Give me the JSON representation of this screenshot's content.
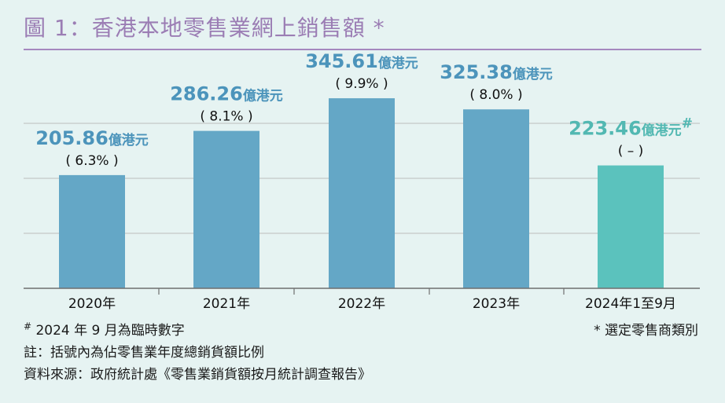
{
  "title": "圖 1：香港本地零售業網上銷售額 *",
  "colors": {
    "bar": "#64a7c6",
    "bar_highlight": "#5bc2bd",
    "value_label": "#4c94bb",
    "value_label_highlight": "#52b8b2",
    "grid": "#bcbcbc",
    "axis": "#6f6f6f",
    "title": "#9b7db4"
  },
  "chart_data": {
    "type": "bar",
    "categories": [
      "2020年",
      "2021年",
      "2022年",
      "2023年",
      "2024年1至9月"
    ],
    "values": [
      205.86,
      286.26,
      345.61,
      325.38,
      223.46
    ],
    "value_labels": [
      "205.86",
      "286.26",
      "345.61",
      "325.38",
      "223.46"
    ],
    "unit": "億港元",
    "value_marks": [
      "",
      "",
      "",
      "",
      "#"
    ],
    "growth_labels": [
      "( 6.3% )",
      "( 8.1% )",
      "( 9.9% )",
      "( 8.0% )",
      "( – )"
    ],
    "highlight_index": 4,
    "ylim": [
      0,
      360
    ],
    "grid": true,
    "grid_values": [
      0,
      100,
      200,
      300
    ],
    "xlabel": "",
    "ylabel": ""
  },
  "footnotes": {
    "note1_mark": "#",
    "note1_text": " 2024 年 9 月為臨時數字",
    "note2": "註：括號內為佔零售業年度總銷貨額比例",
    "source": "資料來源：政府統計處《零售業銷貨額按月統計調查報告》",
    "star_note": "* 選定零售商類別"
  }
}
